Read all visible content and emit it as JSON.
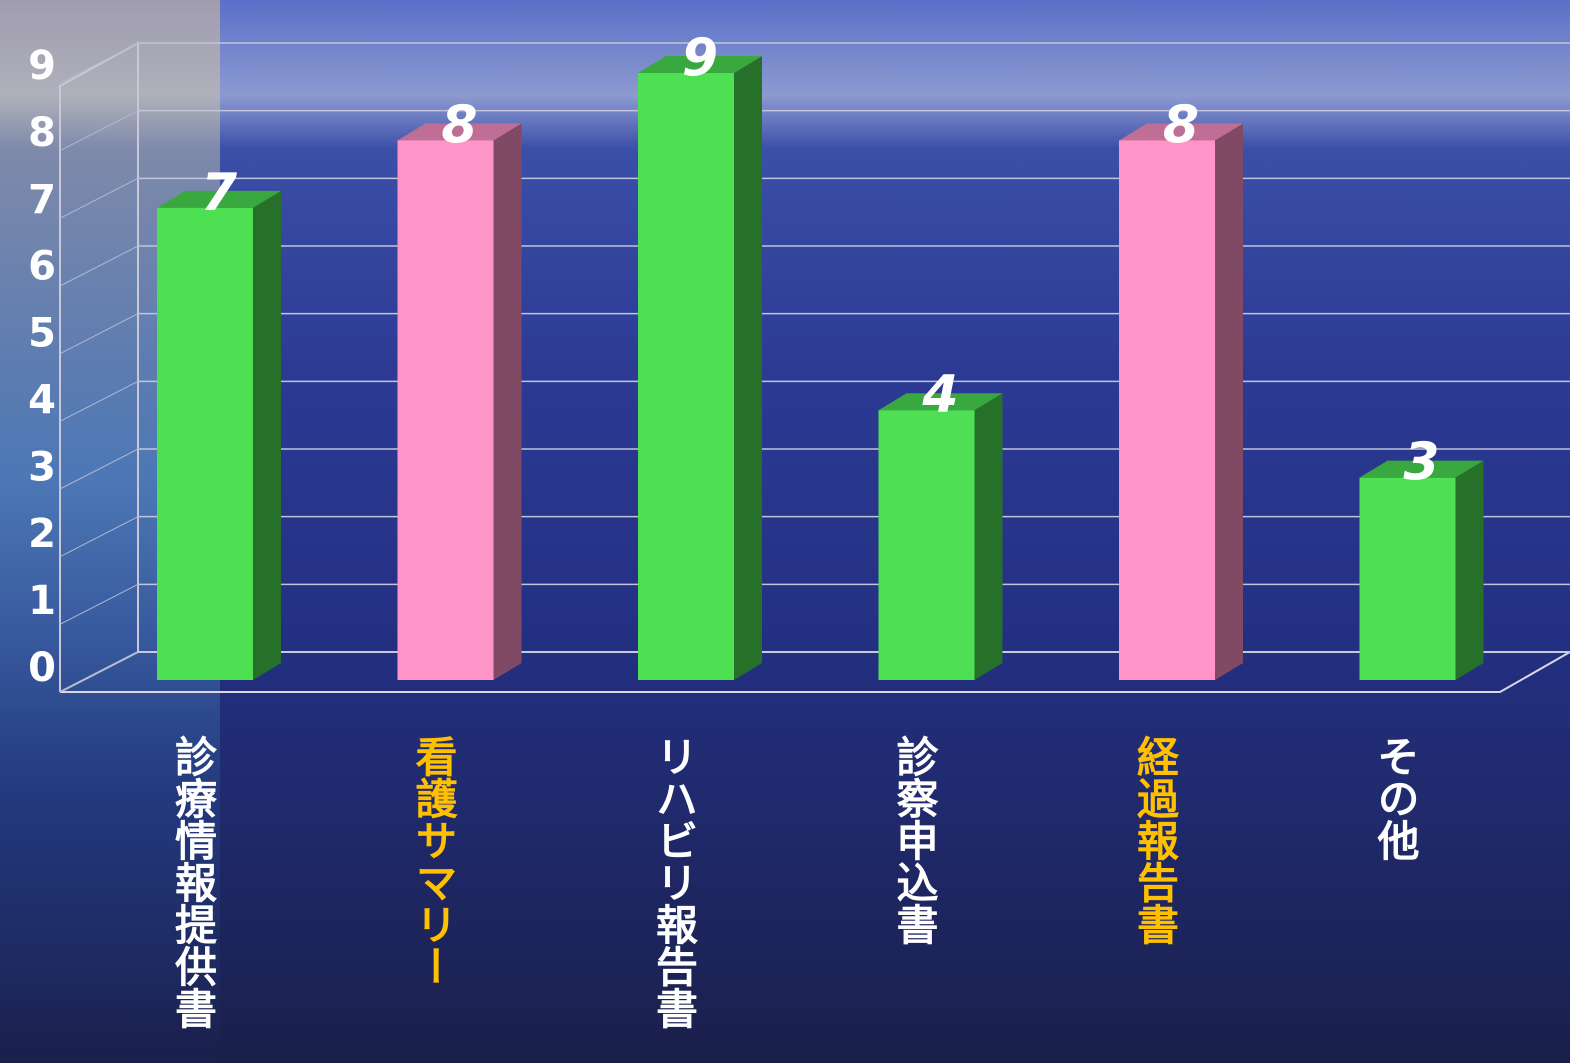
{
  "chart_data": {
    "type": "bar",
    "categories": [
      "診療情報提供書",
      "看護サマリー",
      "リハビリ報告書",
      "診察申込書",
      "経過報告書",
      "その他"
    ],
    "values": [
      7,
      8,
      9,
      4,
      8,
      3
    ],
    "colors": [
      "#4ce052",
      "#ff94c8",
      "#4ce052",
      "#4ce052",
      "#ff94c8",
      "#4ce052"
    ],
    "label_colors": [
      "#ffffff",
      "#ffc000",
      "#ffffff",
      "#ffffff",
      "#ffc000",
      "#ffffff"
    ],
    "ylim": [
      0,
      9
    ],
    "yticks": [
      0,
      1,
      2,
      3,
      4,
      5,
      6,
      7,
      8,
      9
    ],
    "grid": true
  }
}
